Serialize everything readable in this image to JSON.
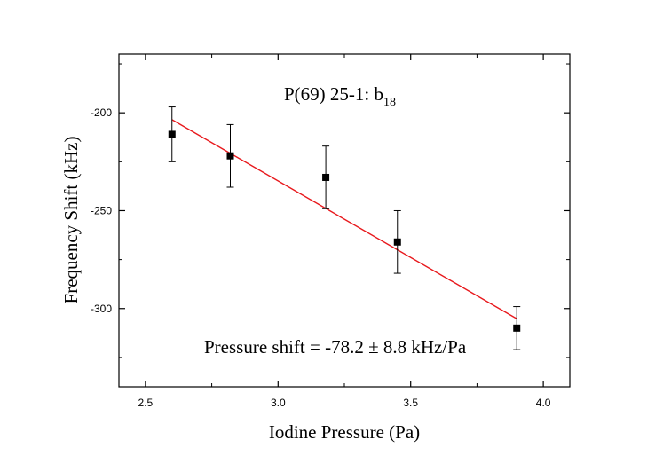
{
  "chart_data": {
    "type": "scatter",
    "xlabel": "Iodine Pressure (Pa)",
    "ylabel": "Frequency Shift (kHz)",
    "xlim": [
      2.4,
      4.1
    ],
    "ylim": [
      -340,
      -170
    ],
    "x_ticks": [
      2.5,
      3.0,
      3.5,
      4.0
    ],
    "x_tick_labels": [
      "2.5",
      "3.0",
      "3.5",
      "4.0"
    ],
    "y_ticks": [
      -200,
      -250,
      -300
    ],
    "y_tick_labels": [
      "-200",
      "-250",
      "-300"
    ],
    "x_minor_ticks": [
      2.75,
      3.25,
      3.75
    ],
    "y_minor_ticks": [
      -175,
      -225,
      -275,
      -325
    ],
    "points": [
      {
        "x": 2.6,
        "y": -211,
        "err": 14
      },
      {
        "x": 2.82,
        "y": -222,
        "err": 16
      },
      {
        "x": 3.18,
        "y": -233,
        "err": 16
      },
      {
        "x": 3.45,
        "y": -266,
        "err": 16
      },
      {
        "x": 3.9,
        "y": -310,
        "err": 11
      }
    ],
    "fit": {
      "x": [
        2.6,
        3.9
      ],
      "y": [
        -203.5,
        -305.2
      ]
    },
    "annotation_main": "P(69) 25-1: b",
    "annotation_sub": "18",
    "annotation_shift": "Pressure shift = -78.2 ± 8.8 kHz/Pa",
    "colors": {
      "fit": "#e8191d",
      "points": "#000000",
      "axes": "#000000"
    }
  }
}
